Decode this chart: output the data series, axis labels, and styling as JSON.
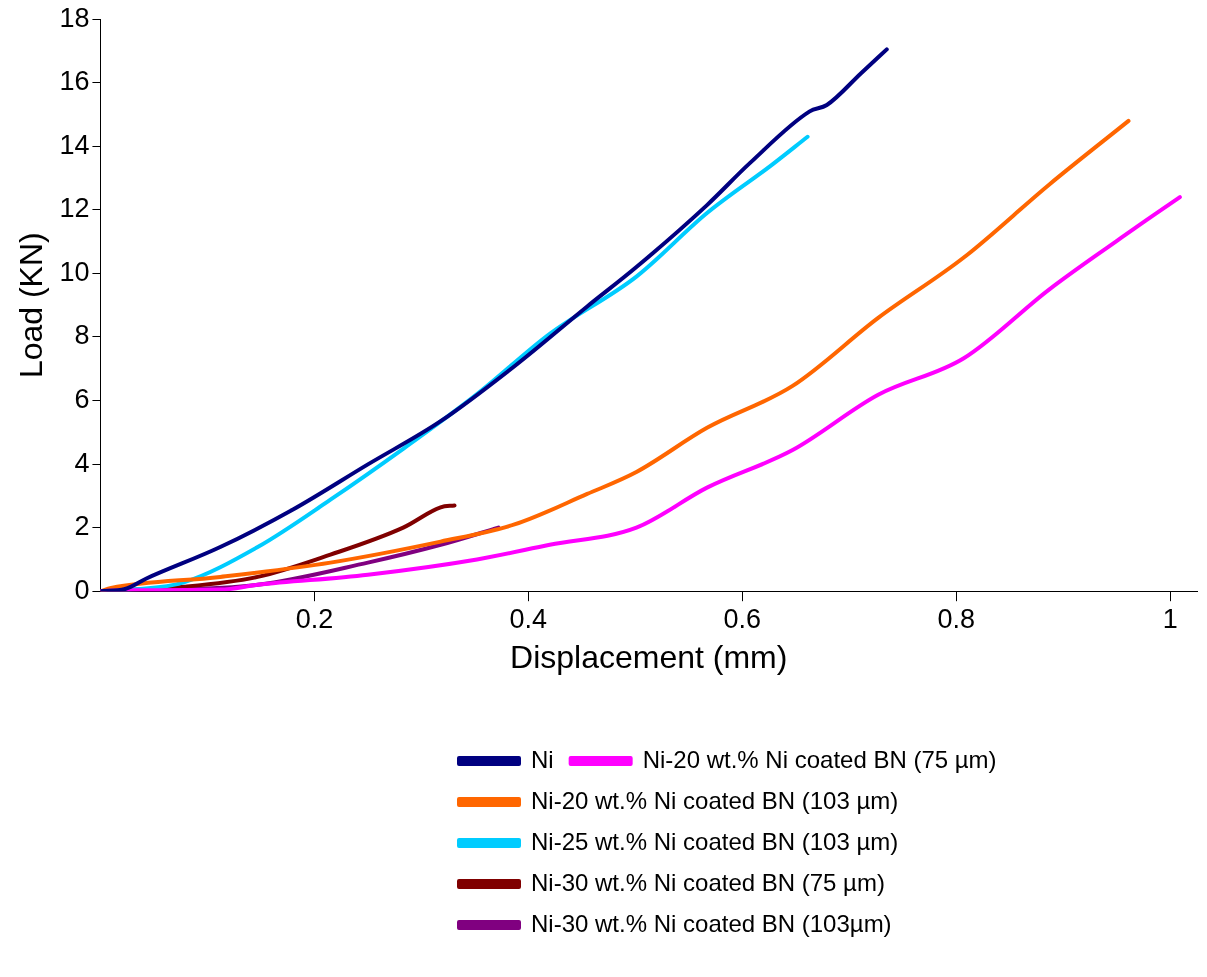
{
  "chart_data": {
    "type": "line",
    "xlabel": "Displacement (mm)",
    "ylabel": "Load (KN)",
    "xlim": [
      0,
      1.025
    ],
    "xticks": [
      0.2,
      0.4,
      0.6,
      0.8,
      1
    ],
    "ylim": [
      0,
      18
    ],
    "yticks": [
      0,
      2,
      4,
      6,
      8,
      10,
      12,
      14,
      16,
      18
    ],
    "grid": false,
    "legend": "bottom",
    "marker": "none",
    "line_style": "solid",
    "series": [
      {
        "name": "Ni",
        "color": "#000080",
        "x": [
          0,
          0.023,
          0.043,
          0.112,
          0.18,
          0.25,
          0.318,
          0.387,
          0.455,
          0.501,
          0.567,
          0.607,
          0.663,
          0.679,
          0.711,
          0.735
        ],
        "values": [
          0,
          0.07,
          0.4,
          1.39,
          2.57,
          3.99,
          5.35,
          7.08,
          8.96,
          10.2,
          12.15,
          13.47,
          15.1,
          15.3,
          16.3,
          17.05
        ]
      },
      {
        "name": "Ni-20 wt.% Ni coated BN (75 µm)",
        "color": "#ff00ff",
        "x": [
          0,
          0.027,
          0.112,
          0.147,
          0.25,
          0.352,
          0.42,
          0.501,
          0.567,
          0.647,
          0.727,
          0.807,
          0.887,
          0.966,
          1.009
        ],
        "values": [
          0,
          0.03,
          0.05,
          0.2,
          0.52,
          1.0,
          1.46,
          2.0,
          3.26,
          4.44,
          6.18,
          7.33,
          9.5,
          11.4,
          12.4
        ]
      },
      {
        "name": "Ni-20 wt.% Ni coated BN (103 µm)",
        "color": "#ff6600",
        "x": [
          0,
          0.01,
          0.112,
          0.215,
          0.318,
          0.387,
          0.455,
          0.501,
          0.567,
          0.647,
          0.727,
          0.807,
          0.887,
          0.961
        ],
        "values": [
          0,
          0.1,
          0.45,
          0.9,
          1.56,
          2.1,
          3.06,
          3.75,
          5.14,
          6.46,
          8.6,
          10.5,
          12.8,
          14.8
        ]
      },
      {
        "name": "Ni-25 wt.% Ni coated BN (103 µm)",
        "color": "#00ccff",
        "x": [
          0,
          0.03,
          0.078,
          0.147,
          0.215,
          0.283,
          0.352,
          0.42,
          0.501,
          0.567,
          0.627,
          0.661
        ],
        "values": [
          0,
          0.05,
          0.28,
          1.39,
          2.88,
          4.48,
          6.2,
          8.1,
          9.9,
          11.9,
          13.4,
          14.3
        ]
      },
      {
        "name": "Ni-30 wt.% Ni coated BN (75 µm)",
        "color": "#800000",
        "x": [
          0,
          0.078,
          0.147,
          0.215,
          0.283,
          0.318,
          0.331
        ],
        "values": [
          0,
          0.14,
          0.45,
          1.15,
          2.0,
          2.64,
          2.7
        ]
      },
      {
        "name": "Ni-30 wt.% Ni coated BN (103µm)",
        "color": "#800080",
        "x": [
          0,
          0.043,
          0.147,
          0.25,
          0.318,
          0.372
        ],
        "values": [
          0,
          0.03,
          0.2,
          0.9,
          1.46,
          2.0
        ]
      }
    ]
  }
}
